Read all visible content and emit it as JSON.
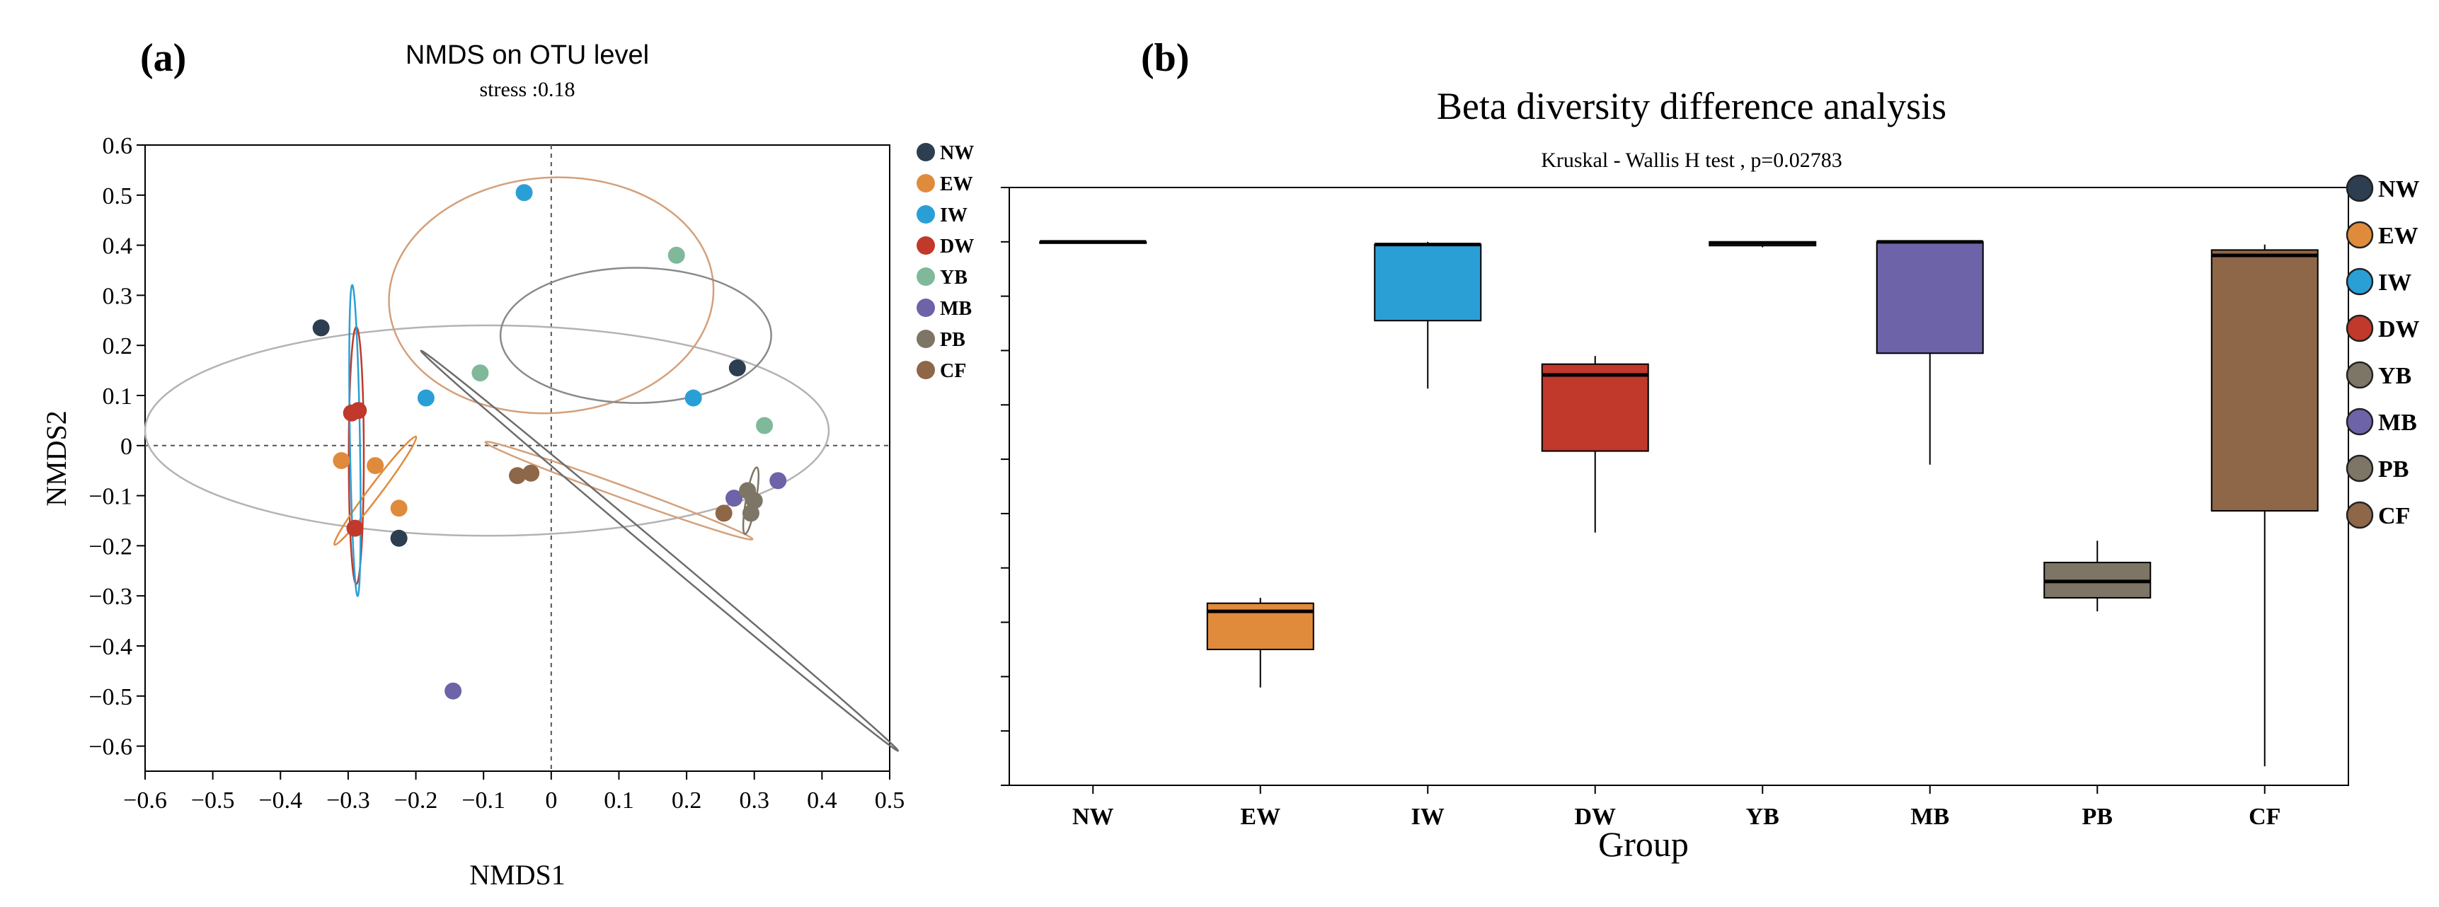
{
  "chart_data": [
    {
      "panel_label": "(a)",
      "type": "scatter",
      "title": "NMDS on OTU level",
      "subtitle": "stress :0.18",
      "xlabel": "NMDS1",
      "ylabel": "NMDS2",
      "xlim": [
        -0.6,
        0.5
      ],
      "ylim": [
        -0.65,
        0.6
      ],
      "xticks": [
        -0.6,
        -0.5,
        -0.4,
        -0.3,
        -0.2,
        -0.1,
        0,
        0.1,
        0.2,
        0.3,
        0.4,
        0.5
      ],
      "yticks": [
        0.6,
        0.5,
        0.4,
        0.3,
        0.2,
        0.1,
        0,
        -0.1,
        -0.2,
        -0.3,
        -0.4,
        -0.5,
        -0.6
      ],
      "xtick_labels": [
        "−0.6",
        "−0.5",
        "−0.4",
        "−0.3",
        "−0.2",
        "−0.1",
        "0",
        "0.1",
        "0.2",
        "0.3",
        "0.4",
        "0.5"
      ],
      "ytick_labels": [
        "0.6",
        "0.5",
        "0.4",
        "0.3",
        "0.2",
        "0.1",
        "0",
        "−0.1",
        "−0.2",
        "−0.3",
        "−0.4",
        "−0.5",
        "−0.6"
      ],
      "series": [
        {
          "name": "NW",
          "color": "#2c3e50",
          "points": [
            [
              -0.34,
              0.235
            ],
            [
              -0.225,
              -0.185
            ],
            [
              0.275,
              0.155
            ]
          ]
        },
        {
          "name": "EW",
          "color": "#e08b3c",
          "points": [
            [
              -0.31,
              -0.03
            ],
            [
              -0.26,
              -0.04
            ],
            [
              -0.225,
              -0.125
            ]
          ]
        },
        {
          "name": "IW",
          "color": "#2a9fd6",
          "points": [
            [
              -0.04,
              0.505
            ],
            [
              -0.185,
              0.095
            ],
            [
              0.21,
              0.095
            ]
          ]
        },
        {
          "name": "DW",
          "color": "#c0392b",
          "points": [
            [
              -0.295,
              0.065
            ],
            [
              -0.285,
              0.07
            ],
            [
              -0.29,
              -0.165
            ]
          ]
        },
        {
          "name": "YB",
          "color": "#7fb99a",
          "points": [
            [
              0.185,
              0.38
            ],
            [
              -0.105,
              0.145
            ],
            [
              0.315,
              0.04
            ]
          ]
        },
        {
          "name": "MB",
          "color": "#6c63a8",
          "points": [
            [
              0.27,
              -0.105
            ],
            [
              0.335,
              -0.07
            ],
            [
              -0.145,
              -0.49
            ]
          ]
        },
        {
          "name": "PB",
          "color": "#7d7565",
          "points": [
            [
              0.29,
              -0.09
            ],
            [
              0.3,
              -0.11
            ],
            [
              0.295,
              -0.135
            ]
          ]
        },
        {
          "name": "CF",
          "color": "#8e6648",
          "points": [
            [
              -0.05,
              -0.06
            ],
            [
              -0.03,
              -0.055
            ],
            [
              0.255,
              -0.135
            ]
          ]
        }
      ],
      "ellipses": [
        {
          "group": "NW",
          "center": [
            -0.095,
            0.03
          ],
          "rx": 0.505,
          "ry": 0.21,
          "angle_deg": 0,
          "color": "#b3b3b3"
        },
        {
          "group": "IW",
          "center": [
            0.0,
            0.3
          ],
          "rx": 0.24,
          "ry": 0.235,
          "angle_deg": -4,
          "color": "#d4a07a"
        },
        {
          "group": "YB",
          "center": [
            0.125,
            0.22
          ],
          "rx": 0.2,
          "ry": 0.135,
          "angle_deg": 0,
          "color": "#8a8a8a"
        },
        {
          "group": "DW",
          "center": [
            -0.288,
            -0.02
          ],
          "rx": 0.19,
          "ry": 0.015,
          "angle_deg": -90,
          "color": "#c0392b"
        },
        {
          "group": "EW",
          "center": [
            -0.26,
            -0.09
          ],
          "rx": 0.1,
          "ry": 0.012,
          "angle_deg": -53,
          "color": "#e08b3c"
        },
        {
          "group": "IW-small",
          "center": [
            -0.29,
            0.01
          ],
          "rx": 0.23,
          "ry": 0.01,
          "angle_deg": -91,
          "color": "#2a9fd6"
        },
        {
          "group": "CF",
          "center": [
            0.1,
            -0.09
          ],
          "rx": 0.21,
          "ry": 0.012,
          "angle_deg": 20,
          "color": "#d4a07a"
        },
        {
          "group": "MB",
          "center": [
            0.16,
            -0.21
          ],
          "rx": 0.46,
          "ry": 0.01,
          "angle_deg": 40,
          "color": "#6c6c6c"
        },
        {
          "group": "PB",
          "center": [
            0.295,
            -0.11
          ],
          "rx": 0.05,
          "ry": 0.01,
          "angle_deg": -80,
          "color": "#7d7565"
        }
      ],
      "legend": {
        "placement": "right",
        "entries": [
          "NW",
          "EW",
          "IW",
          "DW",
          "YB",
          "MB",
          "PB",
          "CF"
        ]
      }
    },
    {
      "panel_label": "(b)",
      "type": "box",
      "title": "Beta diversity difference analysis",
      "subtitle": "Kruskal - Wallis H test , p=0.02783",
      "xlabel": "Group",
      "ylabel": "",
      "ylim": [
        0,
        1.1
      ],
      "categories": [
        "NW",
        "EW",
        "IW",
        "DW",
        "YB",
        "MB",
        "PB",
        "CF"
      ],
      "boxes": [
        {
          "name": "NW",
          "color": "#2c3e50",
          "min": 1.0,
          "q1": 1.0,
          "median": 1.0,
          "q3": 1.0,
          "max": 1.0
        },
        {
          "name": "EW",
          "color": "#e08b3c",
          "min": 0.18,
          "q1": 0.25,
          "median": 0.32,
          "q3": 0.335,
          "max": 0.345
        },
        {
          "name": "IW",
          "color": "#2a9fd6",
          "min": 0.73,
          "q1": 0.855,
          "median": 0.995,
          "q3": 0.995,
          "max": 1.0
        },
        {
          "name": "DW",
          "color": "#c0392b",
          "min": 0.465,
          "q1": 0.615,
          "median": 0.755,
          "q3": 0.775,
          "max": 0.79
        },
        {
          "name": "YB",
          "color": "#7d7565",
          "min": 0.99,
          "q1": 0.993,
          "median": 0.998,
          "q3": 1.0,
          "max": 1.0
        },
        {
          "name": "MB",
          "color": "#6c63a8",
          "min": 0.59,
          "q1": 0.795,
          "median": 1.0,
          "q3": 1.0,
          "max": 1.0
        },
        {
          "name": "PB",
          "color": "#7d7565",
          "min": 0.32,
          "q1": 0.345,
          "median": 0.375,
          "q3": 0.41,
          "max": 0.45
        },
        {
          "name": "CF",
          "color": "#8e6648",
          "min": 0.035,
          "q1": 0.505,
          "median": 0.975,
          "q3": 0.985,
          "max": 0.995
        }
      ],
      "legend": {
        "placement": "right",
        "entries": [
          "NW",
          "EW",
          "IW",
          "DW",
          "YB",
          "MB",
          "PB",
          "CF"
        ]
      }
    }
  ]
}
